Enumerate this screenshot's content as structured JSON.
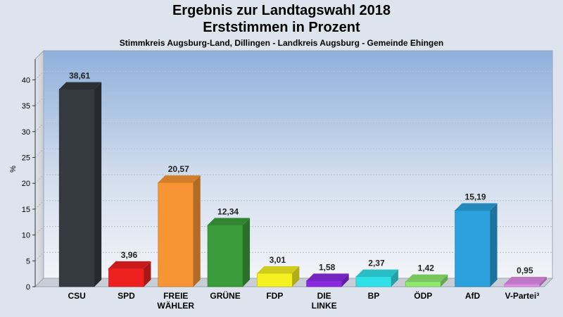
{
  "title": "Ergebnis zur Landtagswahl 2018",
  "subtitle": "Erststimmen in Prozent",
  "caption": "Stimmkreis Augsburg-Land, Dillingen - Landkreis Augsburg - Gemeinde Ehingen",
  "chart_data": {
    "type": "bar",
    "title": "Ergebnis zur Landtagswahl 2018",
    "subtitle": "Erststimmen in Prozent",
    "xlabel": "",
    "ylabel": "%",
    "ylim": [
      0,
      44
    ],
    "yticks": [
      0,
      5,
      10,
      15,
      20,
      25,
      30,
      35,
      40
    ],
    "grid": true,
    "categories": [
      "CSU",
      "SPD",
      "FREIE WÄHLER",
      "GRÜNE",
      "FDP",
      "DIE LINKE",
      "BP",
      "ÖDP",
      "AfD",
      "V-Partei³"
    ],
    "values": [
      38.61,
      3.96,
      20.57,
      12.34,
      3.01,
      1.58,
      2.37,
      1.42,
      15.19,
      0.95
    ],
    "value_labels": [
      "38,61",
      "3,96",
      "20,57",
      "12,34",
      "3,01",
      "1,58",
      "2,37",
      "1,42",
      "15,19",
      "0,95"
    ],
    "tick_labels": [
      [
        "CSU"
      ],
      [
        "SPD"
      ],
      [
        "FREIE",
        "WÄHLER"
      ],
      [
        "GRÜNE"
      ],
      [
        "FDP"
      ],
      [
        "DIE",
        "LINKE"
      ],
      [
        "BP"
      ],
      [
        "ÖDP"
      ],
      [
        "AfD"
      ],
      [
        "V-Partei³"
      ]
    ],
    "colors": [
      "#353a40",
      "#ee2020",
      "#f79433",
      "#3a9c3a",
      "#f5f020",
      "#8a2be2",
      "#30e0e8",
      "#8ee86e",
      "#2aa0dc",
      "#e08ce8"
    ]
  }
}
